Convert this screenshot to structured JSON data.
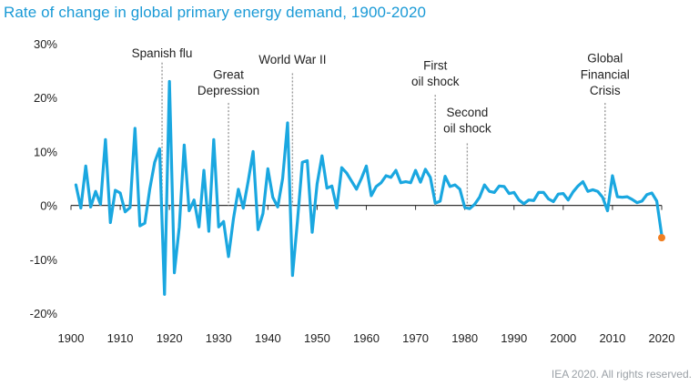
{
  "title": "Rate of change in global primary energy demand, 1900-2020",
  "credit": "IEA 2020. All rights reserved.",
  "colors": {
    "line": "#1aa7e0",
    "estimate": "#f07f22",
    "axis": "#333333",
    "annotation_line": "#9a9a9a",
    "title": "#1a9ad6"
  },
  "chart_data": {
    "type": "line",
    "title": "Rate of change in global primary energy demand, 1900-2020",
    "xlabel": "",
    "ylabel": "",
    "xlim": [
      1900,
      2020
    ],
    "ylim": [
      -20,
      30
    ],
    "xticks": [
      1900,
      1910,
      1920,
      1930,
      1940,
      1950,
      1960,
      1970,
      1980,
      1990,
      2000,
      2010,
      2020
    ],
    "yticks": [
      -20,
      -10,
      0,
      10,
      20,
      30
    ],
    "ytick_labels": [
      "-20%",
      "-10%",
      "0%",
      "10%",
      "20%",
      "30%"
    ],
    "grid": false,
    "series": [
      {
        "values": [
          [
            1901,
            3.8
          ],
          [
            1902,
            -0.5
          ],
          [
            1903,
            7.3
          ],
          [
            1904,
            -0.3
          ],
          [
            1905,
            2.6
          ],
          [
            1906,
            0.2
          ],
          [
            1907,
            12.2
          ],
          [
            1908,
            -3.2
          ],
          [
            1909,
            2.8
          ],
          [
            1910,
            2.3
          ],
          [
            1911,
            -1.2
          ],
          [
            1912,
            -0.4
          ],
          [
            1913,
            14.3
          ],
          [
            1914,
            -3.8
          ],
          [
            1915,
            -3.3
          ],
          [
            1916,
            3.0
          ],
          [
            1917,
            8.0
          ],
          [
            1918,
            10.5
          ],
          [
            1919,
            -16.5
          ],
          [
            1920,
            23.0
          ],
          [
            1921,
            -12.5
          ],
          [
            1922,
            -4.0
          ],
          [
            1923,
            11.2
          ],
          [
            1924,
            -1.0
          ],
          [
            1925,
            1.0
          ],
          [
            1926,
            -4.0
          ],
          [
            1927,
            6.5
          ],
          [
            1928,
            -4.8
          ],
          [
            1929,
            12.2
          ],
          [
            1930,
            -4.0
          ],
          [
            1931,
            -3.0
          ],
          [
            1932,
            -9.5
          ],
          [
            1933,
            -2.5
          ],
          [
            1934,
            3.0
          ],
          [
            1935,
            -0.5
          ],
          [
            1936,
            4.5
          ],
          [
            1937,
            10.0
          ],
          [
            1938,
            -4.5
          ],
          [
            1939,
            -1.5
          ],
          [
            1940,
            6.8
          ],
          [
            1941,
            1.5
          ],
          [
            1942,
            -0.3
          ],
          [
            1943,
            5.0
          ],
          [
            1944,
            15.3
          ],
          [
            1945,
            -13.0
          ],
          [
            1946,
            -3.0
          ],
          [
            1947,
            8.0
          ],
          [
            1948,
            8.3
          ],
          [
            1949,
            -5.0
          ],
          [
            1950,
            4.0
          ],
          [
            1951,
            9.2
          ],
          [
            1952,
            3.2
          ],
          [
            1953,
            3.6
          ],
          [
            1954,
            -0.5
          ],
          [
            1955,
            7.0
          ],
          [
            1956,
            6.0
          ],
          [
            1957,
            4.5
          ],
          [
            1958,
            3.0
          ],
          [
            1959,
            5.0
          ],
          [
            1960,
            7.3
          ],
          [
            1961,
            1.8
          ],
          [
            1962,
            3.5
          ],
          [
            1963,
            4.2
          ],
          [
            1964,
            5.5
          ],
          [
            1965,
            5.2
          ],
          [
            1966,
            6.5
          ],
          [
            1967,
            4.2
          ],
          [
            1968,
            4.4
          ],
          [
            1969,
            4.2
          ],
          [
            1970,
            6.5
          ],
          [
            1971,
            4.3
          ],
          [
            1972,
            6.7
          ],
          [
            1973,
            5.2
          ],
          [
            1974,
            0.4
          ],
          [
            1975,
            0.8
          ],
          [
            1976,
            5.4
          ],
          [
            1977,
            3.5
          ],
          [
            1978,
            3.8
          ],
          [
            1979,
            3.0
          ],
          [
            1980,
            -0.4
          ],
          [
            1981,
            -0.6
          ],
          [
            1982,
            0.2
          ],
          [
            1983,
            1.5
          ],
          [
            1984,
            3.8
          ],
          [
            1985,
            2.6
          ],
          [
            1986,
            2.4
          ],
          [
            1987,
            3.6
          ],
          [
            1988,
            3.5
          ],
          [
            1989,
            2.2
          ],
          [
            1990,
            2.4
          ],
          [
            1991,
            1.0
          ],
          [
            1992,
            0.3
          ],
          [
            1993,
            1.0
          ],
          [
            1994,
            0.9
          ],
          [
            1995,
            2.4
          ],
          [
            1996,
            2.4
          ],
          [
            1997,
            1.2
          ],
          [
            1998,
            0.7
          ],
          [
            1999,
            2.1
          ],
          [
            2000,
            2.2
          ],
          [
            2001,
            1.0
          ],
          [
            2002,
            2.5
          ],
          [
            2003,
            3.6
          ],
          [
            2004,
            4.4
          ],
          [
            2005,
            2.6
          ],
          [
            2006,
            2.9
          ],
          [
            2007,
            2.6
          ],
          [
            2008,
            1.5
          ],
          [
            2009,
            -1.0
          ],
          [
            2010,
            5.5
          ],
          [
            2011,
            1.6
          ],
          [
            2012,
            1.5
          ],
          [
            2013,
            1.6
          ],
          [
            2014,
            1.1
          ],
          [
            2015,
            0.5
          ],
          [
            2016,
            0.8
          ],
          [
            2017,
            2.0
          ],
          [
            2018,
            2.3
          ],
          [
            2019,
            0.8
          ],
          [
            2020,
            -5.5
          ]
        ]
      }
    ],
    "estimate_point": [
      2020,
      -6.0
    ],
    "annotations": [
      {
        "lines": [
          "Spanish flu"
        ],
        "year": 1918.5,
        "anchor": "middle",
        "top": 26.5,
        "text_y": [
          27.5
        ]
      },
      {
        "lines": [
          "Great",
          "Depression"
        ],
        "year": 1932,
        "anchor": "middle",
        "top": 19.0,
        "text_y": [
          23.5,
          20.5
        ]
      },
      {
        "lines": [
          "World War II"
        ],
        "year": 1945,
        "anchor": "middle",
        "top": 24.5,
        "text_y": [
          26.3
        ]
      },
      {
        "lines": [
          "First",
          "oil shock"
        ],
        "year": 1974,
        "anchor": "middle",
        "top": 20.5,
        "text_y": [
          25.2,
          22.2
        ]
      },
      {
        "lines": [
          "Second",
          "oil shock"
        ],
        "year": 1980.5,
        "anchor": "middle",
        "top": 11.5,
        "text_y": [
          16.5,
          13.5
        ]
      },
      {
        "lines": [
          "Global",
          "Financial",
          "Crisis"
        ],
        "year": 2008.5,
        "anchor": "middle",
        "top": 19.0,
        "text_y": [
          26.5,
          23.5,
          20.5
        ]
      }
    ]
  }
}
